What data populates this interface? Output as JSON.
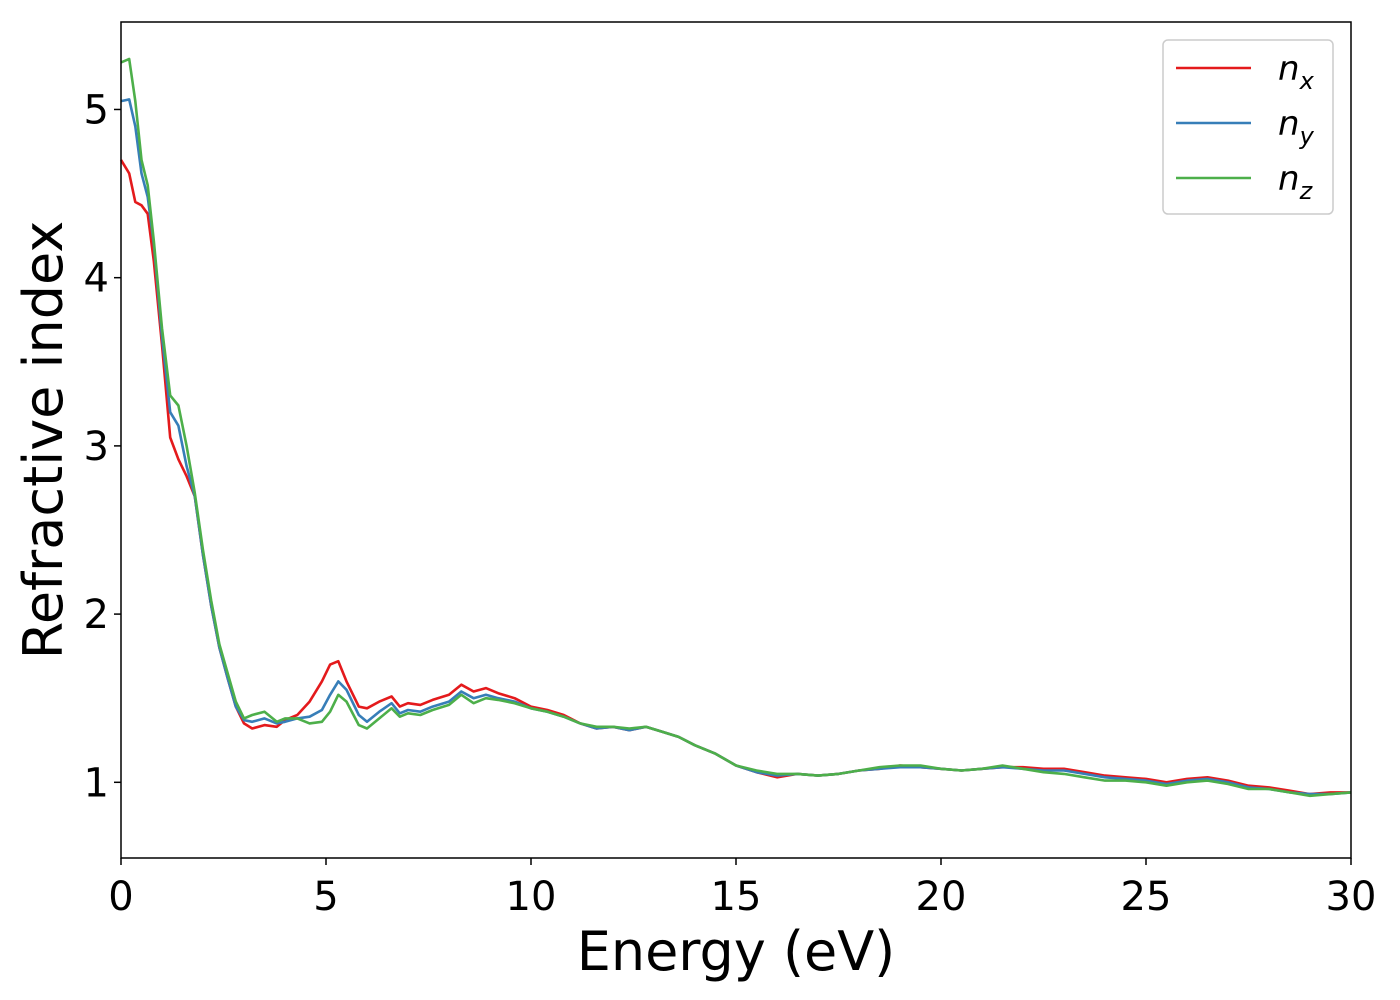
{
  "chart_data": {
    "type": "line",
    "xlabel": "Energy (eV)",
    "ylabel": "Refractive index",
    "xlim": [
      0,
      30
    ],
    "ylim": [
      0.55,
      5.52
    ],
    "xticks": [
      0,
      5,
      10,
      15,
      20,
      25,
      30
    ],
    "yticks": [
      1,
      2,
      3,
      4,
      5
    ],
    "grid": false,
    "legend_position": "top-right",
    "series": [
      {
        "name": "n_x",
        "label_base": "n",
        "label_sub": "x",
        "color": "#e41a1c",
        "x": [
          0,
          0.2,
          0.35,
          0.5,
          0.65,
          0.8,
          1.0,
          1.2,
          1.4,
          1.6,
          1.8,
          2.0,
          2.2,
          2.4,
          2.6,
          2.8,
          3.0,
          3.2,
          3.5,
          3.8,
          4.0,
          4.3,
          4.6,
          4.9,
          5.1,
          5.3,
          5.5,
          5.8,
          6.0,
          6.3,
          6.6,
          6.8,
          7.0,
          7.3,
          7.6,
          8.0,
          8.3,
          8.6,
          8.9,
          9.2,
          9.6,
          10.0,
          10.4,
          10.8,
          11.2,
          11.6,
          12.0,
          12.4,
          12.8,
          13.2,
          13.6,
          14.0,
          14.5,
          15.0,
          15.5,
          16.0,
          16.5,
          17.0,
          17.5,
          18.0,
          18.5,
          19.0,
          19.5,
          20.0,
          20.5,
          21.0,
          21.5,
          22.0,
          22.5,
          23.0,
          23.5,
          24.0,
          24.5,
          25.0,
          25.5,
          26.0,
          26.5,
          27.0,
          27.5,
          28.0,
          28.5,
          29.0,
          29.5,
          30.0
        ],
        "values": [
          4.7,
          4.62,
          4.45,
          4.43,
          4.38,
          4.1,
          3.6,
          3.05,
          2.92,
          2.82,
          2.7,
          2.35,
          2.05,
          1.8,
          1.62,
          1.45,
          1.35,
          1.32,
          1.34,
          1.33,
          1.37,
          1.4,
          1.48,
          1.6,
          1.7,
          1.72,
          1.6,
          1.45,
          1.44,
          1.48,
          1.51,
          1.45,
          1.47,
          1.46,
          1.49,
          1.52,
          1.58,
          1.54,
          1.56,
          1.53,
          1.5,
          1.45,
          1.43,
          1.4,
          1.35,
          1.32,
          1.33,
          1.31,
          1.33,
          1.3,
          1.27,
          1.22,
          1.17,
          1.1,
          1.06,
          1.03,
          1.05,
          1.04,
          1.05,
          1.07,
          1.08,
          1.1,
          1.09,
          1.08,
          1.07,
          1.08,
          1.09,
          1.09,
          1.08,
          1.08,
          1.06,
          1.04,
          1.03,
          1.02,
          1.0,
          1.02,
          1.03,
          1.01,
          0.98,
          0.97,
          0.95,
          0.93,
          0.94,
          0.94
        ]
      },
      {
        "name": "n_y",
        "label_base": "n",
        "label_sub": "y",
        "color": "#377eb8",
        "x": [
          0,
          0.2,
          0.35,
          0.5,
          0.65,
          0.8,
          1.0,
          1.2,
          1.4,
          1.6,
          1.8,
          2.0,
          2.2,
          2.4,
          2.6,
          2.8,
          3.0,
          3.2,
          3.5,
          3.8,
          4.0,
          4.3,
          4.6,
          4.9,
          5.1,
          5.3,
          5.5,
          5.8,
          6.0,
          6.3,
          6.6,
          6.8,
          7.0,
          7.3,
          7.6,
          8.0,
          8.3,
          8.6,
          8.9,
          9.2,
          9.6,
          10.0,
          10.4,
          10.8,
          11.2,
          11.6,
          12.0,
          12.4,
          12.8,
          13.2,
          13.6,
          14.0,
          14.5,
          15.0,
          15.5,
          16.0,
          16.5,
          17.0,
          17.5,
          18.0,
          18.5,
          19.0,
          19.5,
          20.0,
          20.5,
          21.0,
          21.5,
          22.0,
          22.5,
          23.0,
          23.5,
          24.0,
          24.5,
          25.0,
          25.5,
          26.0,
          26.5,
          27.0,
          27.5,
          28.0,
          28.5,
          29.0,
          29.5,
          30.0
        ],
        "values": [
          5.05,
          5.06,
          4.9,
          4.62,
          4.48,
          4.2,
          3.65,
          3.2,
          3.12,
          2.88,
          2.7,
          2.35,
          2.05,
          1.8,
          1.62,
          1.45,
          1.37,
          1.36,
          1.38,
          1.35,
          1.36,
          1.38,
          1.39,
          1.43,
          1.52,
          1.6,
          1.55,
          1.4,
          1.36,
          1.42,
          1.47,
          1.41,
          1.43,
          1.42,
          1.45,
          1.48,
          1.54,
          1.5,
          1.52,
          1.5,
          1.48,
          1.44,
          1.42,
          1.39,
          1.35,
          1.32,
          1.33,
          1.31,
          1.33,
          1.3,
          1.27,
          1.22,
          1.17,
          1.1,
          1.06,
          1.04,
          1.05,
          1.04,
          1.05,
          1.07,
          1.08,
          1.09,
          1.09,
          1.08,
          1.07,
          1.08,
          1.09,
          1.08,
          1.07,
          1.07,
          1.05,
          1.03,
          1.02,
          1.01,
          0.99,
          1.01,
          1.02,
          1.0,
          0.97,
          0.96,
          0.94,
          0.93,
          0.93,
          0.94
        ]
      },
      {
        "name": "n_z",
        "label_base": "n",
        "label_sub": "z",
        "color": "#4daf4a",
        "x": [
          0,
          0.2,
          0.35,
          0.5,
          0.65,
          0.8,
          1.0,
          1.2,
          1.4,
          1.6,
          1.8,
          2.0,
          2.2,
          2.4,
          2.6,
          2.8,
          3.0,
          3.2,
          3.5,
          3.8,
          4.0,
          4.3,
          4.6,
          4.9,
          5.1,
          5.3,
          5.5,
          5.8,
          6.0,
          6.3,
          6.6,
          6.8,
          7.0,
          7.3,
          7.6,
          8.0,
          8.3,
          8.6,
          8.9,
          9.2,
          9.6,
          10.0,
          10.4,
          10.8,
          11.2,
          11.6,
          12.0,
          12.4,
          12.8,
          13.2,
          13.6,
          14.0,
          14.5,
          15.0,
          15.5,
          16.0,
          16.5,
          17.0,
          17.5,
          18.0,
          18.5,
          19.0,
          19.5,
          20.0,
          20.5,
          21.0,
          21.5,
          22.0,
          22.5,
          23.0,
          23.5,
          24.0,
          24.5,
          25.0,
          25.5,
          26.0,
          26.5,
          27.0,
          27.5,
          28.0,
          28.5,
          29.0,
          29.5,
          30.0
        ],
        "values": [
          5.28,
          5.3,
          5.05,
          4.7,
          4.55,
          4.22,
          3.7,
          3.3,
          3.24,
          3.0,
          2.72,
          2.38,
          2.08,
          1.82,
          1.65,
          1.48,
          1.38,
          1.4,
          1.42,
          1.36,
          1.38,
          1.38,
          1.35,
          1.36,
          1.42,
          1.52,
          1.48,
          1.34,
          1.32,
          1.38,
          1.44,
          1.39,
          1.41,
          1.4,
          1.43,
          1.46,
          1.52,
          1.47,
          1.5,
          1.49,
          1.47,
          1.44,
          1.42,
          1.39,
          1.35,
          1.33,
          1.33,
          1.32,
          1.33,
          1.3,
          1.27,
          1.22,
          1.17,
          1.1,
          1.07,
          1.05,
          1.05,
          1.04,
          1.05,
          1.07,
          1.09,
          1.1,
          1.1,
          1.08,
          1.07,
          1.08,
          1.1,
          1.08,
          1.06,
          1.05,
          1.03,
          1.01,
          1.01,
          1.0,
          0.98,
          1.0,
          1.01,
          0.99,
          0.96,
          0.96,
          0.94,
          0.92,
          0.93,
          0.94
        ]
      }
    ]
  }
}
